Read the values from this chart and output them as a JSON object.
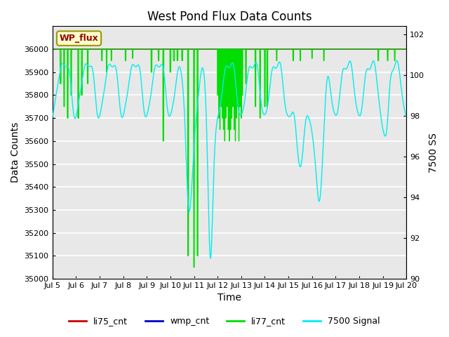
{
  "title": "West Pond Flux Data Counts",
  "xlabel": "Time",
  "ylabel": "Data Counts",
  "ylabel_right": "7500 SS",
  "annotation_text": "WP_flux",
  "xlim_days": [
    5,
    20
  ],
  "ylim_left": [
    35000,
    36100
  ],
  "ylim_right": [
    90,
    102.4
  ],
  "xtick_labels": [
    "Jul 5",
    "Jul 6",
    "Jul 7",
    "Jul 8",
    "Jul 9",
    "Jul 10",
    "Jul 11",
    "Jul 12",
    "Jul 13",
    "Jul 14",
    "Jul 15",
    "Jul 16",
    "Jul 17",
    "Jul 18",
    "Jul 19",
    "Jul 20"
  ],
  "xtick_positions": [
    5,
    6,
    7,
    8,
    9,
    10,
    11,
    12,
    13,
    14,
    15,
    16,
    17,
    18,
    19,
    20
  ],
  "ytick_left": [
    35000,
    35100,
    35200,
    35300,
    35400,
    35500,
    35600,
    35700,
    35800,
    35900,
    36000
  ],
  "ytick_right": [
    90,
    92,
    94,
    96,
    98,
    100,
    102
  ],
  "bg_color": "#e8e8e8",
  "grid_color": "#ffffff",
  "li75_color": "#cc0000",
  "wmp_color": "#0000cc",
  "li77_color": "#00dd00",
  "signal_color": "#00eeee",
  "legend_labels": [
    "li75_cnt",
    "wmp_cnt",
    "li77_cnt",
    "7500 Signal"
  ],
  "legend_colors": [
    "#cc0000",
    "#0000cc",
    "#00dd00",
    "#00eeee"
  ]
}
